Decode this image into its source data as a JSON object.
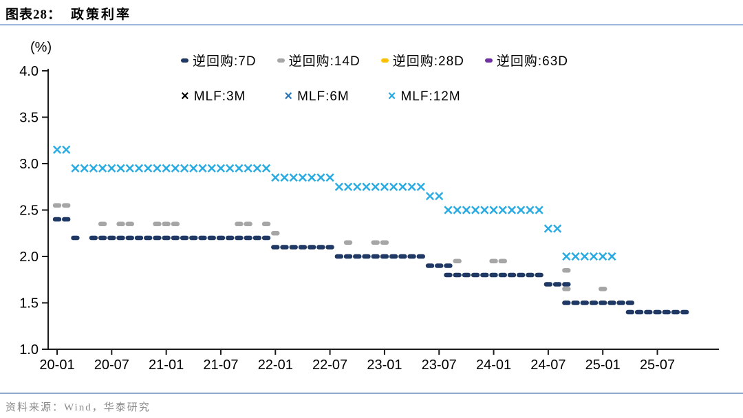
{
  "page": {
    "title_prefix": "图表28：",
    "source": "资料来源：Wind，华泰研究",
    "title_rule_color": "#9BB7DA",
    "footer_rule_color": "#8EA9C9",
    "axis_color": "#1a1a1a"
  },
  "chart_data": {
    "type": "scatter",
    "title": "政策利率",
    "ylabel": "(%)",
    "xlabel": "",
    "ylim": [
      1.0,
      4.0
    ],
    "grid": false,
    "legend_position": "top",
    "y_ticks": [
      "4.0",
      "3.5",
      "3.0",
      "2.5",
      "2.0",
      "1.5",
      "1.0"
    ],
    "x_ticks": [
      "20-01",
      "20-07",
      "21-01",
      "21-07",
      "22-01",
      "22-07",
      "23-01",
      "23-07",
      "24-01",
      "24-07",
      "25-01",
      "25-07"
    ],
    "x_tick_interval_months": 6,
    "series": [
      {
        "name": "逆回购:7D",
        "marker": "capsule",
        "color": "#1F3864",
        "segments": [
          {
            "value": 2.4,
            "from": "2020-01",
            "to": "2020-02"
          },
          {
            "value": 2.2,
            "from": "2020-03",
            "to": "2020-03"
          },
          {
            "value": 2.2,
            "from": "2020-05",
            "to": "2021-12"
          },
          {
            "value": 2.1,
            "from": "2022-01",
            "to": "2022-07"
          },
          {
            "value": 2.0,
            "from": "2022-08",
            "to": "2023-05"
          },
          {
            "value": 1.9,
            "from": "2023-06",
            "to": "2023-08"
          },
          {
            "value": 1.8,
            "from": "2023-08",
            "to": "2024-06"
          },
          {
            "value": 1.7,
            "from": "2024-07",
            "to": "2024-09"
          },
          {
            "value": 1.5,
            "from": "2024-09",
            "to": "2025-04"
          },
          {
            "value": 1.4,
            "from": "2025-04",
            "to": "2025-10"
          }
        ]
      },
      {
        "name": "逆回购:14D",
        "marker": "capsule",
        "color": "#A6A6A6",
        "segments": [
          {
            "value": 2.55,
            "from": "2020-01",
            "to": "2020-02"
          },
          {
            "value": 2.35,
            "from": "2020-06",
            "to": "2020-06"
          },
          {
            "value": 2.35,
            "from": "2020-08",
            "to": "2020-09"
          },
          {
            "value": 2.35,
            "from": "2020-12",
            "to": "2021-02"
          },
          {
            "value": 2.35,
            "from": "2021-09",
            "to": "2021-10"
          },
          {
            "value": 2.35,
            "from": "2021-12",
            "to": "2021-12"
          },
          {
            "value": 2.25,
            "from": "2022-01",
            "to": "2022-01"
          },
          {
            "value": 2.15,
            "from": "2022-09",
            "to": "2022-09"
          },
          {
            "value": 2.15,
            "from": "2022-12",
            "to": "2023-01"
          },
          {
            "value": 1.95,
            "from": "2023-09",
            "to": "2023-09"
          },
          {
            "value": 1.95,
            "from": "2024-01",
            "to": "2024-02"
          },
          {
            "value": 1.85,
            "from": "2024-09",
            "to": "2024-09"
          },
          {
            "value": 1.65,
            "from": "2024-09",
            "to": "2024-09"
          },
          {
            "value": 1.65,
            "from": "2025-01",
            "to": "2025-01"
          }
        ]
      },
      {
        "name": "逆回购:28D",
        "marker": "capsule",
        "color": "#FFC000",
        "segments": []
      },
      {
        "name": "逆回购:63D",
        "marker": "capsule",
        "color": "#7030A0",
        "segments": []
      },
      {
        "name": "MLF:3M",
        "marker": "x",
        "color": "#000000",
        "segments": []
      },
      {
        "name": "MLF:6M",
        "marker": "x",
        "color": "#2E75B6",
        "segments": []
      },
      {
        "name": "MLF:12M",
        "marker": "x",
        "color": "#29ABE2",
        "segments": [
          {
            "value": 3.15,
            "from": "2020-01",
            "to": "2020-02"
          },
          {
            "value": 2.95,
            "from": "2020-03",
            "to": "2021-12"
          },
          {
            "value": 2.85,
            "from": "2022-01",
            "to": "2022-07"
          },
          {
            "value": 2.75,
            "from": "2022-08",
            "to": "2023-05"
          },
          {
            "value": 2.65,
            "from": "2023-06",
            "to": "2023-07"
          },
          {
            "value": 2.5,
            "from": "2023-08",
            "to": "2024-06"
          },
          {
            "value": 2.3,
            "from": "2024-07",
            "to": "2024-08"
          },
          {
            "value": 2.0,
            "from": "2024-09",
            "to": "2025-02"
          }
        ]
      }
    ]
  }
}
